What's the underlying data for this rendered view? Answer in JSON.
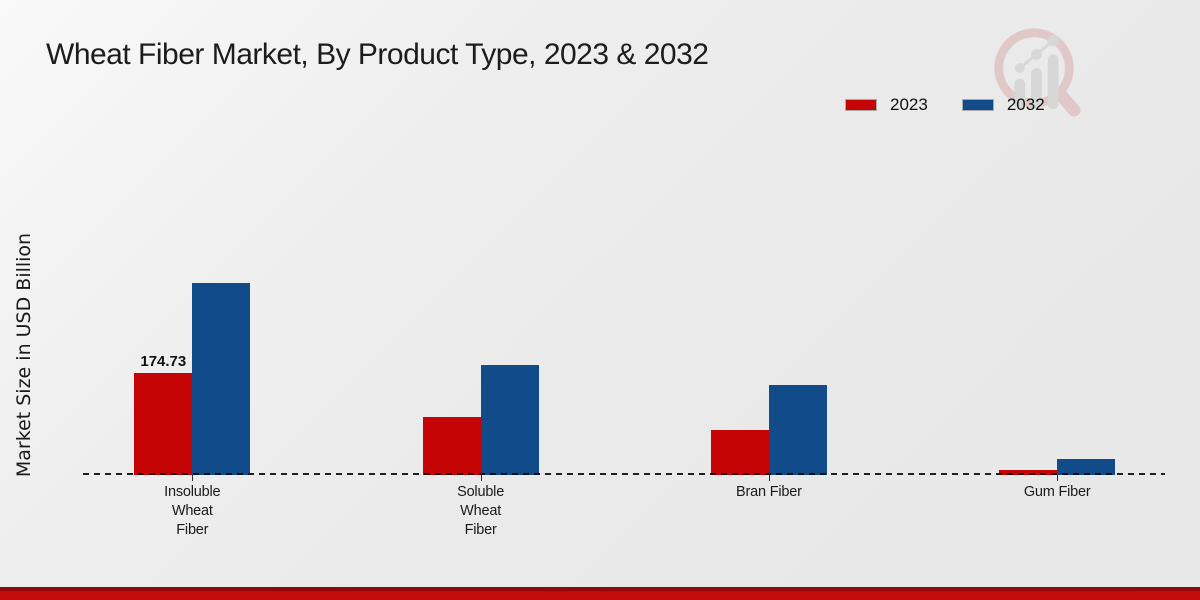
{
  "title": "Wheat Fiber Market, By Product Type, 2023 & 2032",
  "y_axis_label": "Market Size in USD Billion",
  "legend": [
    {
      "label": "2023",
      "color": "#c50505"
    },
    {
      "label": "2032",
      "color": "#114b8a"
    }
  ],
  "colors": {
    "bar_2023": "#c50505",
    "bar_2032": "#114b8a",
    "footer_dark": "#8e0b0b",
    "footer_red": "#c20c0c",
    "text": "#1a1a1a"
  },
  "chart_data": {
    "type": "bar",
    "categories": [
      "Insoluble Wheat Fiber",
      "Soluble Wheat Fiber",
      "Bran Fiber",
      "Gum Fiber"
    ],
    "category_lines": [
      [
        "Insoluble",
        "Wheat",
        "Fiber"
      ],
      [
        "Soluble",
        "Wheat",
        "Fiber"
      ],
      [
        "Bran Fiber"
      ],
      [
        "Gum Fiber"
      ]
    ],
    "series": [
      {
        "name": "2023",
        "color": "#c50505",
        "values": [
          174.73,
          99,
          78,
          9.3
        ]
      },
      {
        "name": "2032",
        "color": "#114b8a",
        "values": [
          330,
          189,
          155,
          27
        ]
      }
    ],
    "value_labels": [
      {
        "series": "2023",
        "category": "Insoluble Wheat Fiber",
        "text": "174.73"
      }
    ],
    "title": "Wheat Fiber Market, By Product Type, 2023 & 2032",
    "xlabel": "",
    "ylabel": "Market Size in USD Billion",
    "ylim": [
      0,
      350
    ],
    "grid": false,
    "legend_position": "top-right",
    "baseline_style": "dashed"
  }
}
